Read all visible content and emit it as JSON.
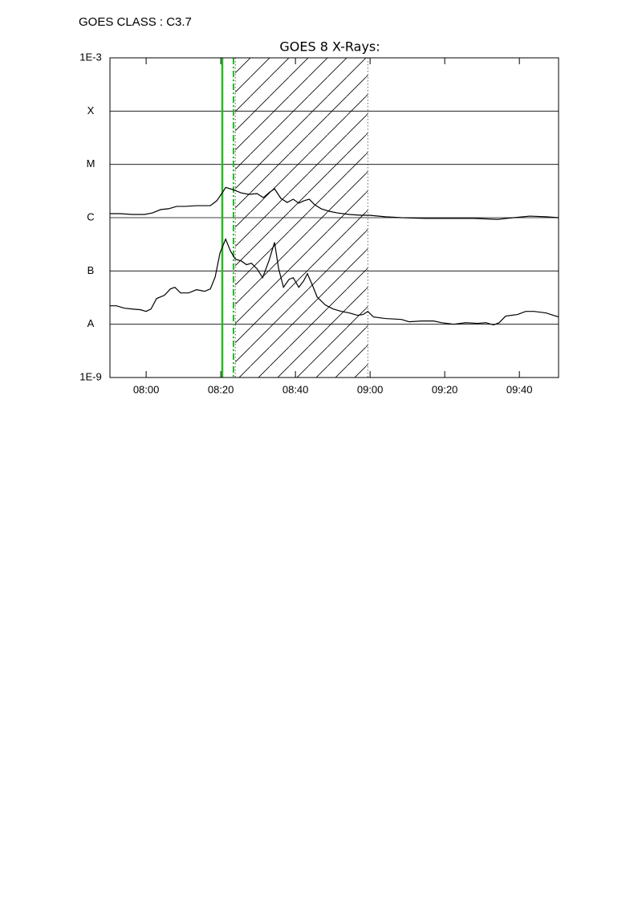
{
  "header": "GOES CLASS : C3.7",
  "chart_data": {
    "type": "line",
    "title": "GOES 8 X-Rays:",
    "log_y": true,
    "grid": true,
    "xlim": [
      470.3,
      590.5
    ],
    "xticks": [
      {
        "value": 480,
        "label": "08:00"
      },
      {
        "value": 500,
        "label": "08:20"
      },
      {
        "value": 520,
        "label": "08:40"
      },
      {
        "value": 540,
        "label": "09:00"
      },
      {
        "value": 560,
        "label": "09:20"
      },
      {
        "value": 580,
        "label": "09:40"
      }
    ],
    "ylim": [
      1e-09,
      0.001
    ],
    "yticks": [
      {
        "value": 1e-09,
        "label": "1E-9"
      },
      {
        "value": 1e-08,
        "label": "A"
      },
      {
        "value": 1e-07,
        "label": "B"
      },
      {
        "value": 1e-06,
        "label": "C"
      },
      {
        "value": 1e-05,
        "label": "M"
      },
      {
        "value": 0.0001,
        "label": "X"
      },
      {
        "value": 0.001,
        "label": "1E-3"
      }
    ],
    "series": [
      {
        "color": "#000000",
        "x": [
          470.3,
          473.1,
          476.3,
          479.6,
          481.7,
          483.9,
          486.0,
          488.2,
          490.3,
          493.5,
          497.2,
          498.9,
          500.4,
          501.3,
          503.2,
          505.4,
          507.5,
          509.7,
          511.4,
          512.9,
          514.4,
          516.1,
          517.8,
          519.4,
          520.9,
          522.2,
          523.7,
          525.2,
          526.9,
          529.0,
          531.2,
          534.4,
          537.6,
          539.8,
          544.1,
          548.4,
          554.8,
          561.3,
          567.7,
          574.2,
          578.5,
          582.8,
          587.1,
          590.5
        ],
        "values": [
          1.19e-06,
          1.19e-06,
          1.15e-06,
          1.15e-06,
          1.23e-06,
          1.42e-06,
          1.47e-06,
          1.63e-06,
          1.63e-06,
          1.68e-06,
          1.68e-06,
          2.07e-06,
          2.93e-06,
          3.7e-06,
          3.37e-06,
          2.93e-06,
          2.74e-06,
          2.83e-06,
          2.38e-06,
          2.93e-06,
          3.49e-06,
          2.3e-06,
          1.93e-06,
          2.22e-06,
          1.87e-06,
          2.07e-06,
          2.22e-06,
          1.74e-06,
          1.47e-06,
          1.32e-06,
          1.23e-06,
          1.15e-06,
          1.11e-06,
          1.11e-06,
          1.04e-06,
          1e-06,
          9.7e-07,
          9.7e-07,
          9.7e-07,
          9.3e-07,
          1e-06,
          1.07e-06,
          1.04e-06,
          1e-06
        ]
      },
      {
        "color": "#000000",
        "x": [
          470.3,
          472.0,
          474.2,
          476.3,
          478.5,
          480.0,
          481.3,
          482.8,
          484.9,
          486.5,
          487.7,
          489.2,
          491.4,
          493.5,
          495.7,
          497.2,
          498.5,
          499.8,
          501.3,
          502.6,
          503.9,
          505.4,
          506.9,
          508.2,
          509.7,
          511.2,
          512.9,
          514.4,
          515.5,
          516.8,
          518.3,
          519.4,
          520.9,
          522.2,
          523.2,
          524.7,
          525.8,
          528.0,
          530.1,
          532.3,
          534.4,
          536.6,
          538.1,
          539.4,
          540.9,
          544.1,
          548.4,
          550.5,
          553.8,
          557.0,
          559.1,
          562.4,
          565.6,
          568.8,
          571.0,
          573.1,
          574.6,
          576.3,
          579.5,
          581.7,
          583.9,
          587.1,
          590.5
        ],
        "values": [
          2.22e-08,
          2.22e-08,
          2e-08,
          1.93e-08,
          1.87e-08,
          1.74e-08,
          1.93e-08,
          3.04e-08,
          3.49e-08,
          4.6e-08,
          4.94e-08,
          3.87e-08,
          3.87e-08,
          4.45e-08,
          4.15e-08,
          4.6e-08,
          7.75e-08,
          2.2e-07,
          3.96e-07,
          2.36e-07,
          1.66e-07,
          1.55e-07,
          1.31e-07,
          1.4e-07,
          1.1e-07,
          7.48e-08,
          1.55e-07,
          3.45e-07,
          1.1e-07,
          4.94e-08,
          6.98e-08,
          7.48e-08,
          4.94e-08,
          6.5e-08,
          8.9e-08,
          5.1e-08,
          3.26e-08,
          2.3e-08,
          1.93e-08,
          1.74e-08,
          1.63e-08,
          1.47e-08,
          1.52e-08,
          1.74e-08,
          1.37e-08,
          1.28e-08,
          1.23e-08,
          1.11e-08,
          1.15e-08,
          1.15e-08,
          1.07e-08,
          1e-08,
          1.07e-08,
          1.04e-08,
          1.07e-08,
          9.7e-09,
          1.07e-08,
          1.42e-08,
          1.52e-08,
          1.74e-08,
          1.74e-08,
          1.63e-08,
          1.37e-08
        ]
      }
    ],
    "flare_lines": [
      {
        "x": 500.4,
        "color": "#22bb22",
        "style": "solid"
      },
      {
        "x": 503.4,
        "color": "#22bb22",
        "style": "dashdot"
      }
    ],
    "shaded_region": [
      503.9,
      539.4
    ]
  }
}
